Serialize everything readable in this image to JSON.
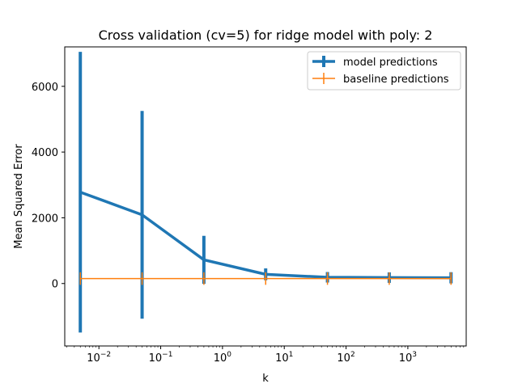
{
  "chart_data": {
    "type": "line",
    "title": "Cross validation (cv=5) for ridge model with poly: 2",
    "xlabel": "k",
    "ylabel": "Mean Squared Error",
    "xscale": "log",
    "xlim": [
      0.0028,
      8800
    ],
    "ylim": [
      -1900,
      7200
    ],
    "x": [
      0.005,
      0.05,
      0.5,
      5,
      50,
      500,
      5000
    ],
    "xticks": [
      {
        "value": 0.01,
        "base": "10",
        "exp": "−2"
      },
      {
        "value": 0.1,
        "base": "10",
        "exp": "−1"
      },
      {
        "value": 1,
        "base": "10",
        "exp": "0"
      },
      {
        "value": 10,
        "base": "10",
        "exp": "1"
      },
      {
        "value": 100,
        "base": "10",
        "exp": "2"
      },
      {
        "value": 1000,
        "base": "10",
        "exp": "3"
      }
    ],
    "yticks": [
      {
        "value": 0,
        "label": "0"
      },
      {
        "value": 2000,
        "label": "2000"
      },
      {
        "value": 4000,
        "label": "4000"
      },
      {
        "value": 6000,
        "label": "6000"
      }
    ],
    "grid": false,
    "legend_position": "top-right",
    "series": [
      {
        "name": "model predictions",
        "color": "#1f77b4",
        "values": [
          2780,
          2090,
          720,
          280,
          190,
          180,
          175
        ],
        "errors": [
          4270,
          3160,
          730,
          180,
          160,
          160,
          170
        ]
      },
      {
        "name": "baseline predictions",
        "color": "#ff7f0e",
        "values": [
          150,
          150,
          150,
          150,
          150,
          150,
          150
        ],
        "errors": [
          190,
          190,
          190,
          190,
          190,
          190,
          190
        ]
      }
    ]
  }
}
